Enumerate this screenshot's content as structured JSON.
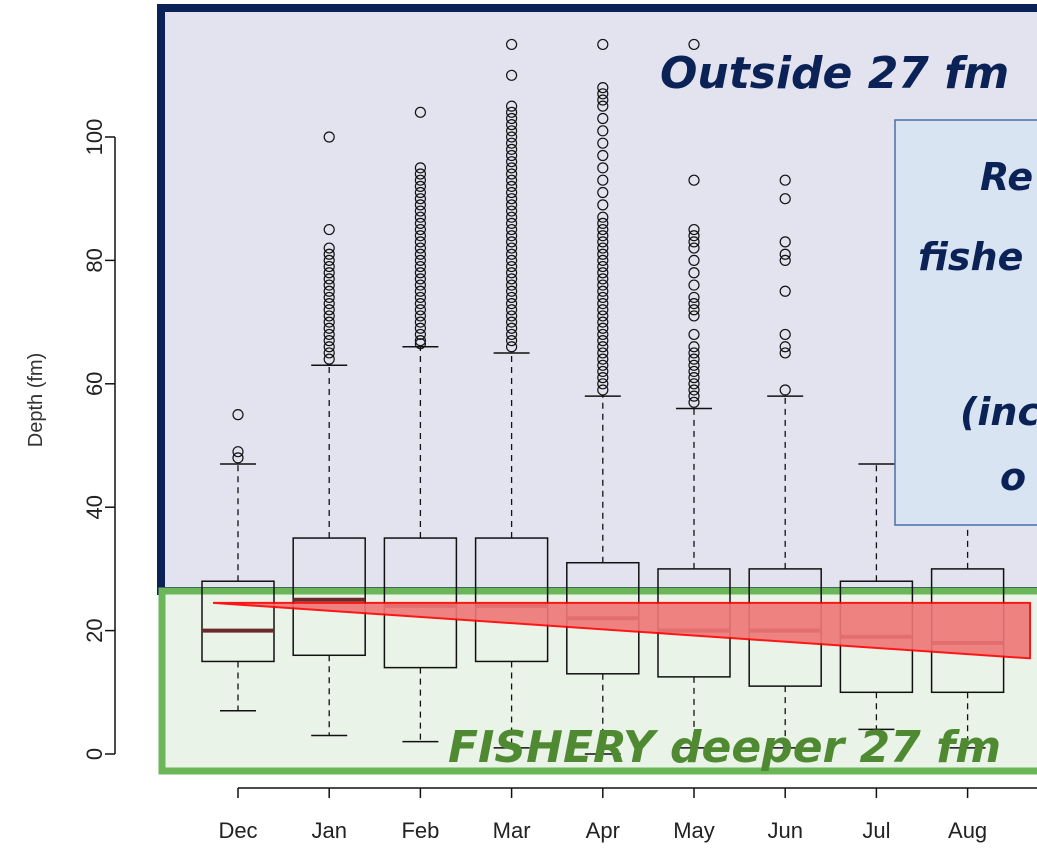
{
  "chart_data": {
    "type": "boxplot",
    "ylabel": "Depth (fm)",
    "ylim": [
      0,
      115
    ],
    "y_ticks": [
      "0",
      "20",
      "40",
      "60",
      "80",
      "100"
    ],
    "y_tick_values": [
      0,
      20,
      40,
      60,
      80,
      100
    ],
    "categories": [
      "Dec",
      "Jan",
      "Feb",
      "Mar",
      "Apr",
      "May",
      "Jun",
      "Jul",
      "Aug"
    ],
    "boxes": [
      {
        "month": "Dec",
        "whisker_low": 7,
        "q1": 15,
        "median": 20,
        "q3": 28,
        "whisker_high": 47
      },
      {
        "month": "Jan",
        "whisker_low": 3,
        "q1": 16,
        "median": 25,
        "q3": 35,
        "whisker_high": 63
      },
      {
        "month": "Feb",
        "whisker_low": 2,
        "q1": 14,
        "median": 24,
        "q3": 35,
        "whisker_high": 66
      },
      {
        "month": "Mar",
        "whisker_low": 1,
        "q1": 15,
        "median": 24,
        "q3": 35,
        "whisker_high": 65
      },
      {
        "month": "Apr",
        "whisker_low": 0,
        "q1": 13,
        "median": 22,
        "q3": 31,
        "whisker_high": 58
      },
      {
        "month": "May",
        "whisker_low": 1,
        "q1": 12.5,
        "median": 20,
        "q3": 30,
        "whisker_high": 56
      },
      {
        "month": "Jun",
        "whisker_low": 1,
        "q1": 11,
        "median": 20,
        "q3": 30,
        "whisker_high": 58
      },
      {
        "month": "Jul",
        "whisker_low": 4,
        "q1": 10,
        "median": 19,
        "q3": 28,
        "whisker_high": 47
      },
      {
        "month": "Aug",
        "whisker_low": 1,
        "q1": 10,
        "median": 18,
        "q3": 30,
        "whisker_high": 39
      }
    ],
    "outliers": [
      [
        55,
        49,
        48
      ],
      [
        100,
        85,
        82,
        81,
        80,
        79,
        78,
        77,
        76,
        75,
        74,
        73,
        72,
        71,
        70,
        69,
        68,
        67,
        66,
        65,
        64
      ],
      [
        104,
        95,
        94,
        93,
        92,
        91,
        90,
        89,
        88,
        87,
        86,
        85,
        84,
        83,
        82,
        81,
        80,
        79,
        78,
        77,
        76,
        75,
        74,
        73,
        72,
        71,
        70,
        69,
        68,
        67,
        66.5
      ],
      [
        115,
        110,
        105,
        104,
        103,
        102,
        101,
        100,
        99,
        98,
        97,
        96,
        95,
        94,
        93,
        92,
        91,
        90,
        89,
        88,
        87,
        86,
        85,
        84,
        83,
        82,
        81,
        80,
        79,
        78,
        77,
        76,
        75,
        74,
        73,
        72,
        71,
        70,
        69,
        68,
        67,
        66
      ],
      [
        115,
        108,
        107,
        106,
        105,
        103,
        101,
        99,
        97,
        95,
        93,
        91,
        89,
        87,
        86,
        85,
        84,
        83,
        82,
        81,
        80,
        79,
        78,
        77,
        76,
        75,
        74,
        73,
        72,
        71,
        70,
        69,
        68,
        67,
        66,
        65,
        64,
        63,
        62,
        61,
        60,
        59
      ],
      [
        115,
        93,
        85,
        84,
        83,
        82,
        80,
        78,
        76,
        74,
        73,
        72,
        71,
        68,
        66,
        65,
        64,
        63,
        62,
        61,
        60,
        59,
        58,
        57
      ],
      [
        93,
        90,
        83,
        81,
        80,
        75,
        68,
        66,
        65,
        59
      ],
      [],
      []
    ],
    "regions": {
      "outside_label": "Outside 27 fm",
      "fishery_label": "FISHERY deeper 27 fm",
      "threshold_fm": 27
    },
    "trend_wedge": {
      "start_fm": 24.5,
      "end_fm_top": 24.5,
      "end_fm_bottom": 15.5
    },
    "callout_lines": [
      "Re",
      "fishe",
      "(inc",
      "o"
    ],
    "colors": {
      "outside_border": "#0b2257",
      "outside_fill": "#e3e3f0",
      "fishery_border": "#6ab659",
      "fishery_fill": "#eaf3e8",
      "fishery_text": "#4f8a33",
      "outside_text": "#0b2257",
      "wedge_fill": "#ef7676",
      "wedge_stroke": "#ff0000",
      "median": "#6b2a2a",
      "callout_fill": "#d8e4f2",
      "callout_border": "#4a6fa5",
      "callout_text": "#0b2257"
    }
  }
}
